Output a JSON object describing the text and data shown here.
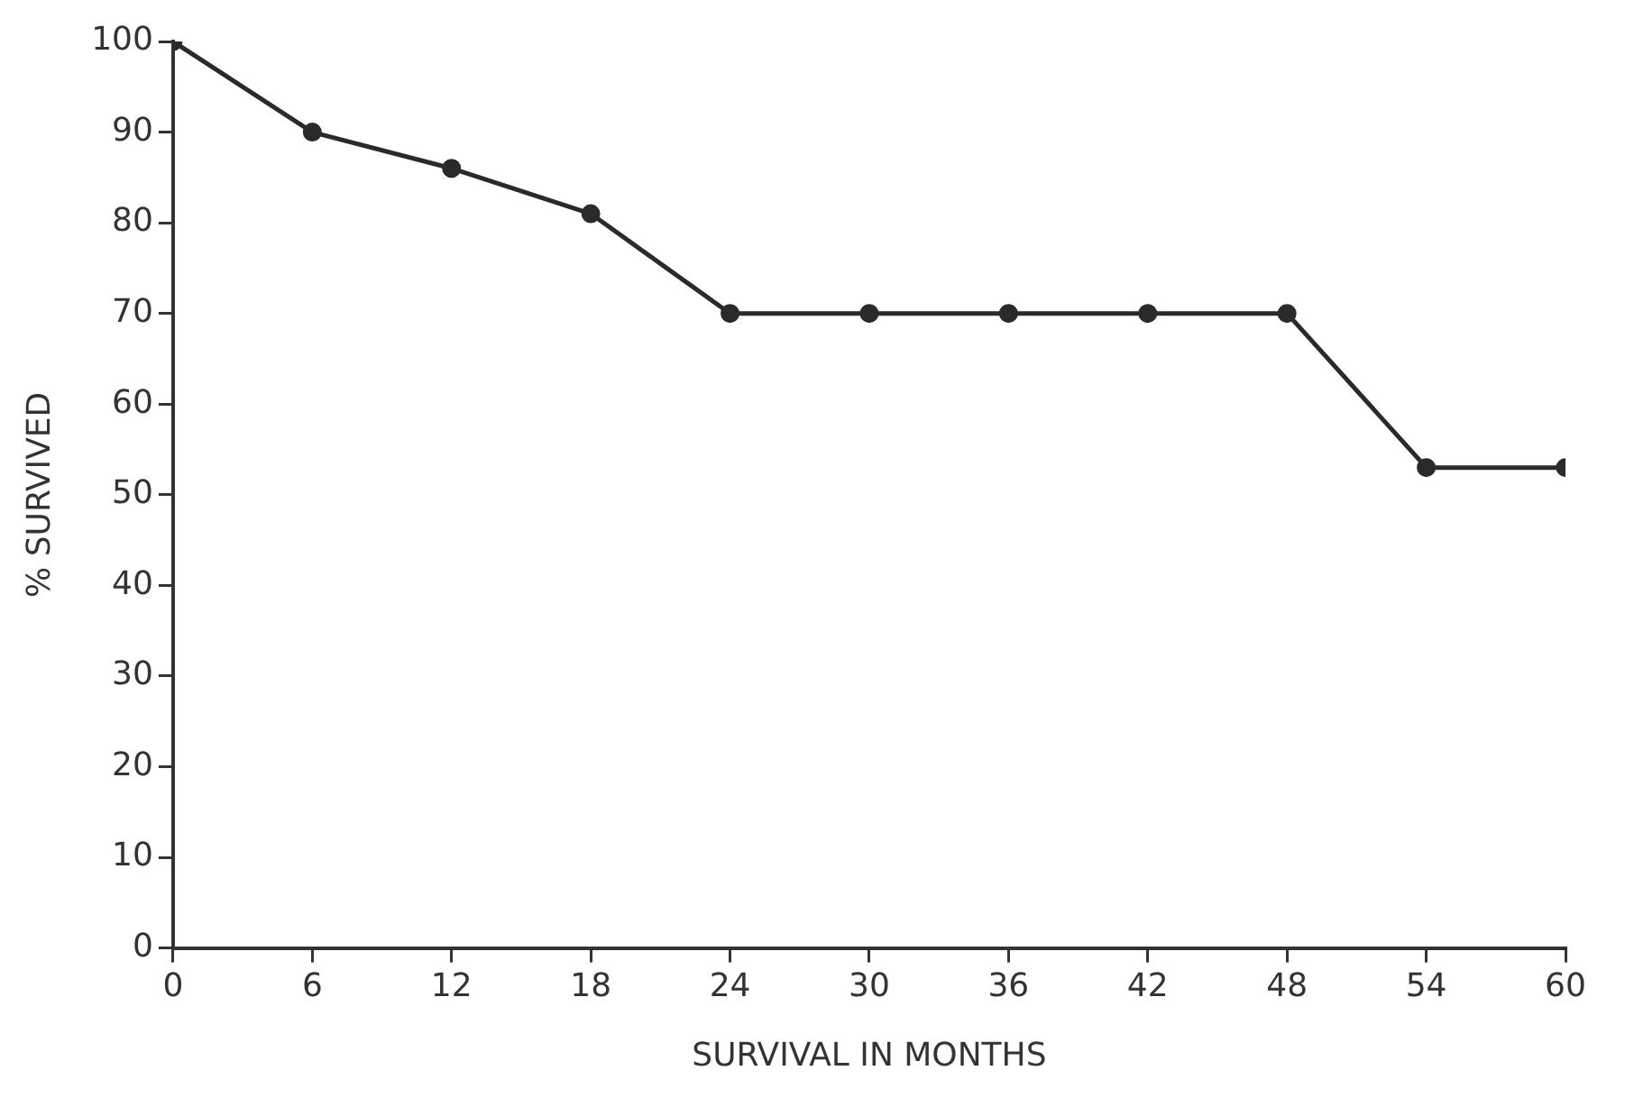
{
  "chart_data": {
    "type": "line",
    "xlabel": "SURVIVAL IN MONTHS",
    "ylabel": "% SURVIVED",
    "x": [
      0,
      6,
      12,
      18,
      24,
      30,
      36,
      42,
      48,
      54,
      60
    ],
    "series": [
      {
        "color": "#2a2a2a",
        "values": [
          100,
          90,
          86,
          81,
          70,
          70,
          70,
          70,
          70,
          53,
          53
        ]
      }
    ],
    "xlim": [
      0,
      60
    ],
    "xticks": [
      0,
      6,
      12,
      18,
      24,
      30,
      36,
      42,
      48,
      54,
      60
    ],
    "ylim": [
      0,
      100
    ],
    "yticks": [
      0,
      10,
      20,
      30,
      40,
      50,
      60,
      70,
      80,
      90,
      100
    ],
    "grid": false,
    "legend": false,
    "marker": "circle",
    "line_style": "solid"
  }
}
